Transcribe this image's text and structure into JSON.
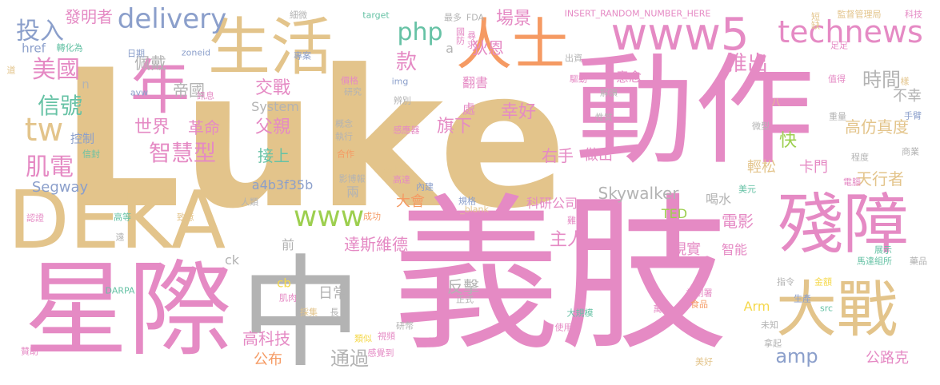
{
  "colors": {
    "pink": "#e58ac4",
    "tan": "#e3c48b",
    "orange": "#f59a63",
    "blue": "#8b9fcb",
    "green": "#9dcf4f",
    "teal": "#66c2a5",
    "gray": "#b3b3b3",
    "yellow": "#f5d84a"
  },
  "words": [
    {
      "text": "Luke",
      "color": "tan"
    },
    {
      "text": "義肢",
      "color": "pink"
    },
    {
      "text": "動作",
      "color": "pink"
    },
    {
      "text": "星際",
      "color": "pink"
    },
    {
      "text": "中",
      "color": "gray"
    },
    {
      "text": "DEKA",
      "color": "tan"
    },
    {
      "text": "殘障",
      "color": "pink"
    },
    {
      "text": "大戰",
      "color": "tan"
    },
    {
      "text": "生活",
      "color": "tan"
    },
    {
      "text": "年",
      "color": "pink"
    },
    {
      "text": "人士",
      "color": "orange"
    },
    {
      "text": "www5",
      "color": "pink"
    },
    {
      "text": "technews",
      "color": "pink"
    },
    {
      "text": "delivery",
      "color": "blue"
    },
    {
      "text": "www",
      "color": "green"
    },
    {
      "text": "tw",
      "color": "tan"
    },
    {
      "text": "投入",
      "color": "blue"
    },
    {
      "text": "美國",
      "color": "pink"
    },
    {
      "text": "信號",
      "color": "teal"
    },
    {
      "text": "肌電",
      "color": "pink"
    },
    {
      "text": "智慧型",
      "color": "pink"
    },
    {
      "text": "推出",
      "color": "pink"
    },
    {
      "text": "時間",
      "color": "gray"
    },
    {
      "text": "php",
      "color": "teal"
    },
    {
      "text": "款",
      "color": "pink"
    },
    {
      "text": "場景",
      "color": "pink"
    },
    {
      "text": "狄恩",
      "color": "pink"
    },
    {
      "text": "發明者",
      "color": "pink"
    },
    {
      "text": "佩戴",
      "color": "gray"
    },
    {
      "text": "帝國",
      "color": "gray"
    },
    {
      "text": "交戰",
      "color": "pink"
    },
    {
      "text": "父親",
      "color": "pink"
    },
    {
      "text": "世界",
      "color": "pink"
    },
    {
      "text": "革命",
      "color": "pink"
    },
    {
      "text": "接上",
      "color": "teal"
    },
    {
      "text": "旗下",
      "color": "pink"
    },
    {
      "text": "幸好",
      "color": "pink"
    },
    {
      "text": "右手",
      "color": "pink"
    },
    {
      "text": "做出",
      "color": "pink"
    },
    {
      "text": "快",
      "color": "green"
    },
    {
      "text": "高仿真度",
      "color": "tan"
    },
    {
      "text": "不幸",
      "color": "gray"
    },
    {
      "text": "卡門",
      "color": "pink"
    },
    {
      "text": "天行者",
      "color": "tan"
    },
    {
      "text": "輕松",
      "color": "tan"
    },
    {
      "text": "Skywalker",
      "color": "gray"
    },
    {
      "text": "Segway",
      "color": "blue"
    },
    {
      "text": "a4b3f35b",
      "color": "blue"
    },
    {
      "text": "TED",
      "color": "green"
    },
    {
      "text": "大會",
      "color": "orange"
    },
    {
      "text": "科研公司",
      "color": "pink"
    },
    {
      "text": "電影",
      "color": "pink"
    },
    {
      "text": "喝水",
      "color": "gray"
    },
    {
      "text": "主人",
      "color": "pink"
    },
    {
      "text": "達斯維德",
      "color": "pink"
    },
    {
      "text": "前",
      "color": "gray"
    },
    {
      "text": "智能",
      "color": "pink"
    },
    {
      "text": "現實",
      "color": "pink"
    },
    {
      "text": "日常",
      "color": "gray"
    },
    {
      "text": "反擊",
      "color": "gray"
    },
    {
      "text": "amp",
      "color": "blue"
    },
    {
      "text": "通過",
      "color": "gray"
    },
    {
      "text": "高科技",
      "color": "pink"
    },
    {
      "text": "公布",
      "color": "orange"
    },
    {
      "text": "公路克",
      "color": "pink"
    },
    {
      "text": "Arm",
      "color": "yellow"
    },
    {
      "text": "System",
      "color": "gray"
    },
    {
      "text": "控制",
      "color": "blue"
    },
    {
      "text": "href",
      "color": "blue"
    },
    {
      "text": "ck",
      "color": "gray"
    },
    {
      "text": "cb",
      "color": "yellow"
    },
    {
      "text": "意念",
      "color": "pink"
    },
    {
      "text": "兩",
      "color": "gray"
    },
    {
      "text": "翻書",
      "color": "pink"
    },
    {
      "text": "處",
      "color": "pink"
    },
    {
      "text": "a",
      "color": "gray"
    },
    {
      "text": "n",
      "color": "gray"
    },
    {
      "text": "target",
      "color": "teal"
    },
    {
      "text": "FDA",
      "color": "gray"
    },
    {
      "text": "INSERT_RANDOM_NUMBER_HERE",
      "color": "pink"
    },
    {
      "text": "監督管理局",
      "color": "tan"
    },
    {
      "text": "科技",
      "color": "pink"
    },
    {
      "text": "細微",
      "color": "gray"
    },
    {
      "text": "最多",
      "color": "gray"
    },
    {
      "text": "國防",
      "color": "pink"
    },
    {
      "text": "尋求",
      "color": "pink"
    },
    {
      "text": "短缺",
      "color": "tan"
    },
    {
      "text": "轉化為",
      "color": "teal"
    },
    {
      "text": "日期",
      "color": "blue"
    },
    {
      "text": "zoneid",
      "color": "blue"
    },
    {
      "text": "專案",
      "color": "blue"
    },
    {
      "text": "出資",
      "color": "gray"
    },
    {
      "text": "足足",
      "color": "pink"
    },
    {
      "text": "道",
      "color": "tan"
    },
    {
      "text": "價格",
      "color": "pink"
    },
    {
      "text": "研究",
      "color": "gray"
    },
    {
      "text": "img",
      "color": "blue"
    },
    {
      "text": "驅動",
      "color": "pink"
    },
    {
      "text": "值得",
      "color": "pink"
    },
    {
      "text": "avw",
      "color": "blue"
    },
    {
      "text": "訊息",
      "color": "pink"
    },
    {
      "text": "辨別",
      "color": "gray"
    },
    {
      "text": "解讀",
      "color": "gray"
    },
    {
      "text": "八",
      "color": "tan"
    },
    {
      "text": "樣",
      "color": "tan"
    },
    {
      "text": "手臂",
      "color": "blue"
    },
    {
      "text": "概念",
      "color": "gray"
    },
    {
      "text": "執行",
      "color": "gray"
    },
    {
      "text": "性質",
      "color": "gray"
    },
    {
      "text": "重量",
      "color": "gray"
    },
    {
      "text": "信封",
      "color": "teal"
    },
    {
      "text": "合作",
      "color": "orange"
    },
    {
      "text": "感應器",
      "color": "pink"
    },
    {
      "text": "微型",
      "color": "gray"
    },
    {
      "text": "商業",
      "color": "gray"
    },
    {
      "text": "程度",
      "color": "gray"
    },
    {
      "text": "伙伴",
      "color": "tan"
    },
    {
      "text": "影博報",
      "color": "gray"
    },
    {
      "text": "高達",
      "color": "pink"
    },
    {
      "text": "內建",
      "color": "blue"
    },
    {
      "text": "美元",
      "color": "teal"
    },
    {
      "text": "電腦",
      "color": "pink"
    },
    {
      "text": "人類",
      "color": "gray"
    },
    {
      "text": "成功",
      "color": "orange"
    },
    {
      "text": "規格",
      "color": "blue"
    },
    {
      "text": "_blank",
      "color": "tan"
    },
    {
      "text": "雞蛋",
      "color": "pink"
    },
    {
      "text": "認證",
      "color": "pink"
    },
    {
      "text": "高等",
      "color": "teal"
    },
    {
      "text": "致意",
      "color": "tan"
    },
    {
      "text": "遠",
      "color": "gray"
    },
    {
      "text": "展示",
      "color": "teal"
    },
    {
      "text": "馬達組所",
      "color": "teal"
    },
    {
      "text": "藥品",
      "color": "gray"
    },
    {
      "text": "指令",
      "color": "gray"
    },
    {
      "text": "金額",
      "color": "yellow"
    },
    {
      "text": "計劃署",
      "color": "pink"
    },
    {
      "text": "食品",
      "color": "orange"
    },
    {
      "text": "生產",
      "color": "blue"
    },
    {
      "text": "src",
      "color": "teal"
    },
    {
      "text": "DARPA",
      "color": "teal"
    },
    {
      "text": "肌肉",
      "color": "pink"
    },
    {
      "text": "採集",
      "color": "tan"
    },
    {
      "text": "長",
      "color": "gray"
    },
    {
      "text": "正式",
      "color": "gray"
    },
    {
      "text": "大規模",
      "color": "teal"
    },
    {
      "text": "萬",
      "color": "pink"
    },
    {
      "text": "未知",
      "color": "gray"
    },
    {
      "text": "贊助",
      "color": "pink"
    },
    {
      "text": "感覺到",
      "color": "pink"
    },
    {
      "text": "類似",
      "color": "yellow"
    },
    {
      "text": "視頻",
      "color": "pink"
    },
    {
      "text": "研幣",
      "color": "gray"
    },
    {
      "text": "使用者",
      "color": "pink"
    },
    {
      "text": "拿起",
      "color": "gray"
    },
    {
      "text": "美好",
      "color": "tan"
    },
    {
      "text": "分析",
      "color": "gray"
    }
  ]
}
